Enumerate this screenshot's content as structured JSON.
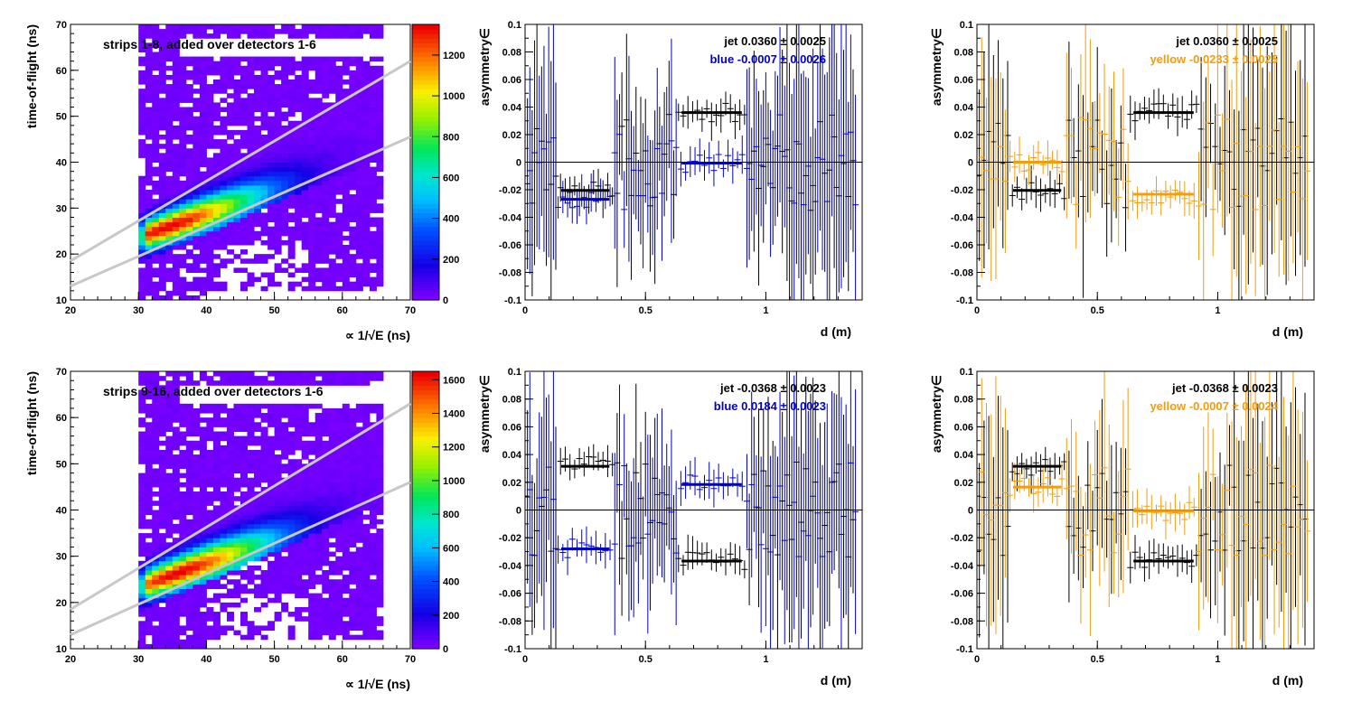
{
  "colors": {
    "jet": "#000000",
    "blue": "#0000cc",
    "yellow": "#f39c0c",
    "band_lines": "#c8c8c8",
    "hist_background": "#7a00ff"
  },
  "chart_data": [
    {
      "id": "tof-upper",
      "type": "heatmap",
      "title": "strips 1-8, added over detectors 1-6",
      "xlabel": "∝ 1/√E (ns)",
      "ylabel": "time-of-flight (ns)",
      "xlim": [
        20,
        70
      ],
      "ylim": [
        10,
        70
      ],
      "x_ticks": [
        "20",
        "30",
        "40",
        "50",
        "60",
        "70"
      ],
      "y_ticks": [
        "10",
        "20",
        "30",
        "40",
        "50",
        "60",
        "70"
      ],
      "colorbar": {
        "max": 1350,
        "ticks": [
          "0",
          "200",
          "400",
          "600",
          "800",
          "1000",
          "1200"
        ]
      },
      "peak": {
        "x": 34.5,
        "y": 26,
        "value": 1350
      },
      "band_lines": [
        {
          "x": [
            20,
            70
          ],
          "y": [
            18.5,
            62
          ]
        },
        {
          "x": [
            20,
            70
          ],
          "y": [
            13,
            45.5
          ]
        }
      ]
    },
    {
      "id": "asym-upper-blue",
      "type": "scatter",
      "xlabel": "d (m)",
      "ylabel": "asymmetry∈",
      "xlim": [
        0,
        1.4
      ],
      "ylim": [
        -0.1,
        0.1
      ],
      "x_ticks": [
        "0",
        "0.5",
        "1"
      ],
      "y_ticks": [
        "-0.1",
        "-0.08",
        "-0.06",
        "-0.04",
        "-0.02",
        "0",
        "0.02",
        "0.04",
        "0.06",
        "0.08",
        "0.1"
      ],
      "legend": [
        {
          "text": "jet  0.0360 ± 0.0025",
          "color": "#000000"
        },
        {
          "text": "blue -0.0007 ± 0.0026",
          "color": "#0000cc"
        }
      ],
      "fits": [
        {
          "series": "jet",
          "color": "#000000",
          "segments": [
            {
              "x": [
                0.15,
                0.35
              ],
              "y": -0.0205
            },
            {
              "x": [
                0.65,
                0.9
              ],
              "y": 0.036
            }
          ]
        },
        {
          "series": "blue",
          "color": "#0000cc",
          "segments": [
            {
              "x": [
                0.15,
                0.35
              ],
              "y": -0.027
            },
            {
              "x": [
                0.65,
                0.9
              ],
              "y": -0.0007
            }
          ]
        }
      ],
      "seed": 11
    },
    {
      "id": "asym-upper-yellow",
      "type": "scatter",
      "xlabel": "d (m)",
      "ylabel": "asymmetry∈",
      "xlim": [
        0,
        1.4
      ],
      "ylim": [
        -0.1,
        0.1
      ],
      "x_ticks": [
        "0",
        "0.5",
        "1"
      ],
      "y_ticks": [
        "-0.1",
        "-0.08",
        "-0.06",
        "-0.04",
        "-0.02",
        "0",
        "0.02",
        "0.04",
        "0.06",
        "0.08",
        "0.1"
      ],
      "legend": [
        {
          "text": "jet  0.0360 ± 0.0025",
          "color": "#000000"
        },
        {
          "text": "yellow -0.0233 ± 0.0025",
          "color": "#f39c0c"
        }
      ],
      "fits": [
        {
          "series": "jet",
          "color": "#000000",
          "segments": [
            {
              "x": [
                0.15,
                0.35
              ],
              "y": -0.0205
            },
            {
              "x": [
                0.65,
                0.9
              ],
              "y": 0.036
            }
          ]
        },
        {
          "series": "yellow",
          "color": "#f39c0c",
          "segments": [
            {
              "x": [
                0.15,
                0.35
              ],
              "y": 0.0
            },
            {
              "x": [
                0.65,
                0.9
              ],
              "y": -0.0233
            }
          ]
        }
      ],
      "seed": 23
    },
    {
      "id": "tof-lower",
      "type": "heatmap",
      "title": "strips 9-16, added over detectors 1-6",
      "xlabel": "∝ 1/√E (ns)",
      "ylabel": "time-of-flight (ns)",
      "xlim": [
        20,
        70
      ],
      "ylim": [
        10,
        70
      ],
      "x_ticks": [
        "20",
        "30",
        "40",
        "50",
        "60",
        "70"
      ],
      "y_ticks": [
        "10",
        "20",
        "30",
        "40",
        "50",
        "60",
        "70"
      ],
      "colorbar": {
        "max": 1650,
        "ticks": [
          "0",
          "200",
          "400",
          "600",
          "800",
          "1000",
          "1200",
          "1400",
          "1600"
        ]
      },
      "peak": {
        "x": 36,
        "y": 26.5,
        "value": 1650
      },
      "band_lines": [
        {
          "x": [
            20,
            70
          ],
          "y": [
            18.5,
            63
          ]
        },
        {
          "x": [
            20,
            70
          ],
          "y": [
            13,
            46
          ]
        }
      ]
    },
    {
      "id": "asym-lower-blue",
      "type": "scatter",
      "xlabel": "d (m)",
      "ylabel": "asymmetry∈",
      "xlim": [
        0,
        1.4
      ],
      "ylim": [
        -0.1,
        0.1
      ],
      "x_ticks": [
        "0",
        "0.5",
        "1"
      ],
      "y_ticks": [
        "-0.1",
        "-0.08",
        "-0.06",
        "-0.04",
        "-0.02",
        "0",
        "0.02",
        "0.04",
        "0.06",
        "0.08",
        "0.1"
      ],
      "legend": [
        {
          "text": "jet -0.0368 ± 0.0023",
          "color": "#000000"
        },
        {
          "text": "blue  0.0184 ± 0.0023",
          "color": "#0000cc"
        }
      ],
      "fits": [
        {
          "series": "jet",
          "color": "#000000",
          "segments": [
            {
              "x": [
                0.15,
                0.35
              ],
              "y": 0.0315
            },
            {
              "x": [
                0.65,
                0.9
              ],
              "y": -0.0368
            }
          ]
        },
        {
          "series": "blue",
          "color": "#0000cc",
          "segments": [
            {
              "x": [
                0.15,
                0.35
              ],
              "y": -0.028
            },
            {
              "x": [
                0.65,
                0.9
              ],
              "y": 0.0184
            }
          ]
        }
      ],
      "seed": 37
    },
    {
      "id": "asym-lower-yellow",
      "type": "scatter",
      "xlabel": "d (m)",
      "ylabel": "asymmetry∈",
      "xlim": [
        0,
        1.4
      ],
      "ylim": [
        -0.1,
        0.1
      ],
      "x_ticks": [
        "0",
        "0.5",
        "1"
      ],
      "y_ticks": [
        "-0.1",
        "-0.08",
        "-0.06",
        "-0.04",
        "-0.02",
        "0",
        "0.02",
        "0.04",
        "0.06",
        "0.08",
        "0.1"
      ],
      "legend": [
        {
          "text": "jet -0.0368 ± 0.0023",
          "color": "#000000"
        },
        {
          "text": "yellow -0.0007 ± 0.0024",
          "color": "#f39c0c"
        }
      ],
      "fits": [
        {
          "series": "jet",
          "color": "#000000",
          "segments": [
            {
              "x": [
                0.15,
                0.35
              ],
              "y": 0.0315
            },
            {
              "x": [
                0.65,
                0.9
              ],
              "y": -0.0368
            }
          ]
        },
        {
          "series": "yellow",
          "color": "#f39c0c",
          "segments": [
            {
              "x": [
                0.15,
                0.35
              ],
              "y": 0.0165
            },
            {
              "x": [
                0.65,
                0.9
              ],
              "y": -0.0007
            }
          ]
        }
      ],
      "seed": 53
    }
  ]
}
